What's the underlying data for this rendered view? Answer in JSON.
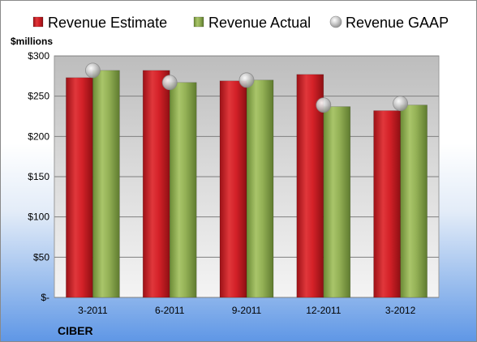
{
  "chart_data": {
    "type": "bar",
    "categories": [
      "3-2011",
      "6-2011",
      "9-2011",
      "12-2011",
      "3-2012"
    ],
    "series": [
      {
        "name": "Revenue Estimate",
        "kind": "bar",
        "color": "#cc1f25",
        "values": [
          273,
          282,
          269,
          277,
          232
        ]
      },
      {
        "name": "Revenue Actual",
        "kind": "bar",
        "color": "#8fae4f",
        "values": [
          282,
          267,
          270,
          237,
          239
        ]
      },
      {
        "name": "Revenue GAAP",
        "kind": "marker",
        "color": "#b8b8b8",
        "values": [
          282,
          267,
          270,
          239,
          241
        ]
      }
    ],
    "ylabel": "$millions",
    "ylim": [
      0,
      300
    ],
    "yticks": [
      0,
      50,
      100,
      150,
      200,
      250,
      300
    ],
    "ytick_labels": [
      "$-",
      "$50",
      "$100",
      "$150",
      "$200",
      "$250",
      "$300"
    ],
    "grid": true,
    "legend_position": "top"
  },
  "company": "CIBER"
}
